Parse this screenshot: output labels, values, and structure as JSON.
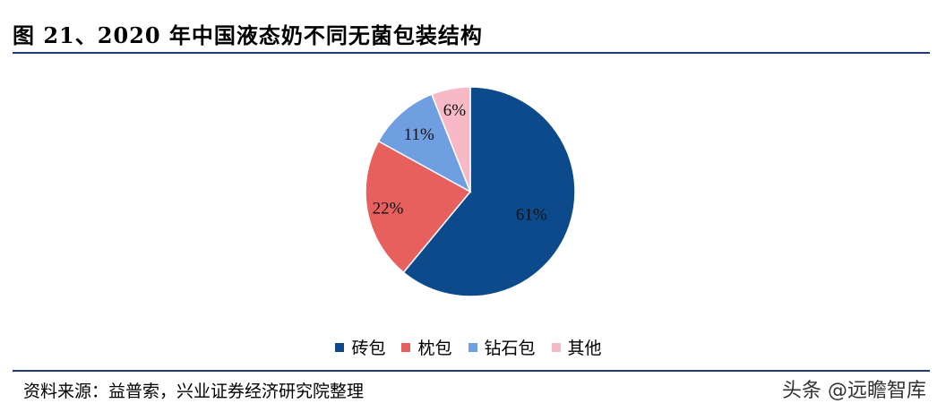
{
  "title": "图 21、2020 年中国液态奶不同无菌包装结构",
  "source": "资料来源：益普索，兴业证券经济研究院整理",
  "watermark": "头条 @远瞻智库",
  "chart_data": {
    "type": "pie",
    "title": "",
    "categories": [
      "砖包",
      "枕包",
      "钻石包",
      "其他"
    ],
    "values": [
      61,
      22,
      11,
      6
    ],
    "labels": [
      "61%",
      "22%",
      "11%",
      "6%"
    ],
    "colors": [
      "#0c4a8c",
      "#e8605e",
      "#6f9fe0",
      "#f7b9c6"
    ],
    "legend_position": "bottom",
    "start_angle": "12 o'clock",
    "direction": "clockwise"
  }
}
